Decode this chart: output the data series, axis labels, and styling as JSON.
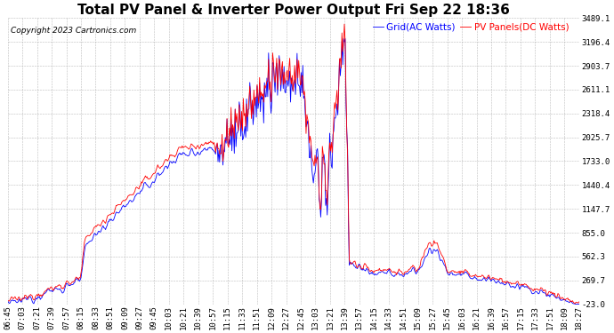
{
  "title": "Total PV Panel & Inverter Power Output Fri Sep 22 18:36",
  "copyright": "Copyright 2023 Cartronics.com",
  "legend_blue": "Grid(AC Watts)",
  "legend_red": "PV Panels(DC Watts)",
  "blue_color": "#0000ff",
  "red_color": "#ff0000",
  "bg_color": "#ffffff",
  "grid_color": "#aaaaaa",
  "yticks": [
    3489.1,
    3196.4,
    2903.7,
    2611.1,
    2318.4,
    2025.7,
    1733.0,
    1440.4,
    1147.7,
    855.0,
    562.3,
    269.7,
    -23.0
  ],
  "ymin": -23.0,
  "ymax": 3489.1,
  "xtick_labels": [
    "06:45",
    "07:03",
    "07:21",
    "07:39",
    "07:57",
    "08:15",
    "08:33",
    "08:51",
    "09:09",
    "09:27",
    "09:45",
    "10:03",
    "10:21",
    "10:39",
    "10:57",
    "11:15",
    "11:33",
    "11:51",
    "12:09",
    "12:27",
    "12:45",
    "13:03",
    "13:21",
    "13:39",
    "13:57",
    "14:15",
    "14:33",
    "14:51",
    "15:09",
    "15:27",
    "15:45",
    "16:03",
    "16:21",
    "16:39",
    "16:57",
    "17:15",
    "17:33",
    "17:51",
    "18:09",
    "18:27"
  ],
  "title_fontsize": 11,
  "axis_fontsize": 6.5,
  "copyright_fontsize": 6.5,
  "legend_fontsize": 7.5
}
